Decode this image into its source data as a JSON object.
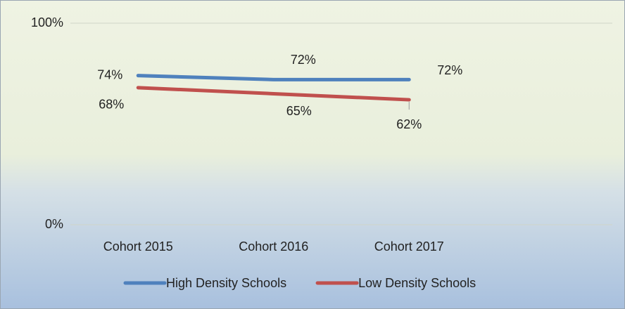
{
  "chart_data": {
    "type": "line",
    "categories": [
      "Cohort 2015",
      "Cohort 2016",
      "Cohort 2017",
      null
    ],
    "series": [
      {
        "name": "High Density Schools",
        "color": "#4f81bd",
        "values": [
          74,
          72,
          72,
          null
        ],
        "value_labels": [
          "74%",
          "72%",
          "72%",
          null
        ]
      },
      {
        "name": "Low Density Schools",
        "color": "#c0504d",
        "values": [
          68,
          65,
          62,
          null
        ],
        "value_labels": [
          "68%",
          "65%",
          "62%",
          null
        ]
      }
    ],
    "ylim": [
      0,
      100
    ],
    "yticks": [
      {
        "value": 0,
        "label": "0%"
      },
      {
        "value": 100,
        "label": "100%"
      }
    ],
    "grid": true,
    "legend": "bottom"
  }
}
